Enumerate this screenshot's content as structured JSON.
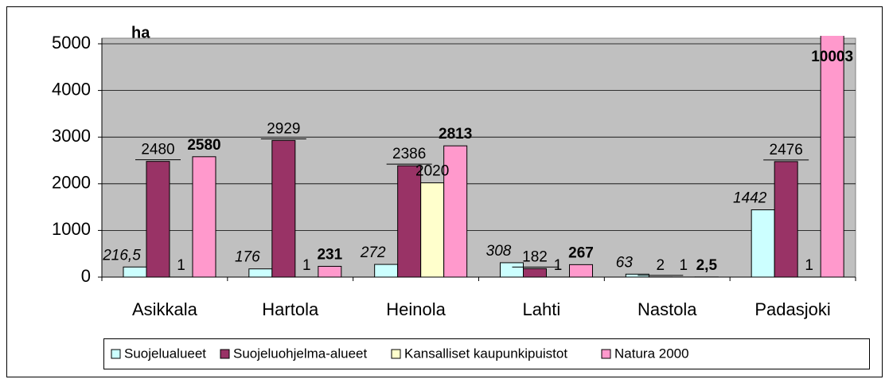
{
  "chart_data": {
    "type": "bar",
    "title": "ha",
    "categories": [
      "Asikkala",
      "Hartola",
      "Heinola",
      "Lahti",
      "Nastola",
      "Padasjoki"
    ],
    "series": [
      {
        "name": "Suojelualueet",
        "color": "#ccffff",
        "values": [
          216.5,
          176,
          272,
          308,
          63,
          1442
        ],
        "value_labels": [
          "216,5",
          "176",
          "272",
          "308",
          "63",
          "1442"
        ]
      },
      {
        "name": "Suojeluohjelma-alueet",
        "color": "#993366",
        "values": [
          2480,
          2929,
          2386,
          182,
          2,
          2476
        ]
      },
      {
        "name": "Kansalliset kaupunkipuistot",
        "color": "#ffffcc",
        "values": [
          1,
          1,
          2020,
          1,
          1,
          1
        ]
      },
      {
        "name": "Natura 2000",
        "color": "#ff99cc",
        "values": [
          2580,
          231,
          2813,
          267,
          2.5,
          10003
        ],
        "value_labels": [
          "2580",
          "231",
          "2813",
          "267",
          "2,5",
          "10003"
        ]
      }
    ],
    "ylim": [
      0,
      5000
    ],
    "yticks": [
      0,
      1000,
      2000,
      3000,
      4000,
      5000
    ],
    "grid": true,
    "legend": "bottom",
    "plot_background": "#c0c0c0"
  }
}
